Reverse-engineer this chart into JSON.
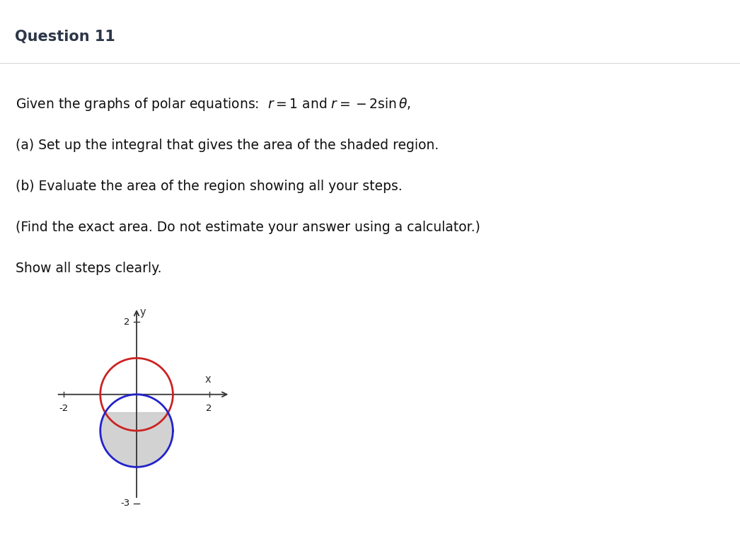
{
  "title": "Question 11",
  "header_bg": "#f2f2f2",
  "header_border": "#cccccc",
  "title_color": "#2d3748",
  "text_lines": [
    "Given the graphs of polar equations:  $r = 1$ and $r = -2\\sin\\theta,$",
    "(a) Set up the integral that gives the area of the shaded region.",
    "(b) Evaluate the area of the region showing all your steps.",
    "(Find the exact area. Do not estimate your answer using a calculator.)",
    "Show all steps clearly."
  ],
  "circle1_color": "#cc2222",
  "circle2_color": "#2222cc",
  "shade_color": "#c0c0c0",
  "shade_alpha": 0.7,
  "axis_xlim": [
    -2.6,
    2.8
  ],
  "axis_ylim": [
    -3.4,
    2.6
  ],
  "xtick_label_pos": [
    -2,
    2
  ],
  "ytick_label_pos": [
    2,
    -3
  ],
  "xlabel": "x",
  "ylabel": "y",
  "fig_bg": "#ffffff"
}
